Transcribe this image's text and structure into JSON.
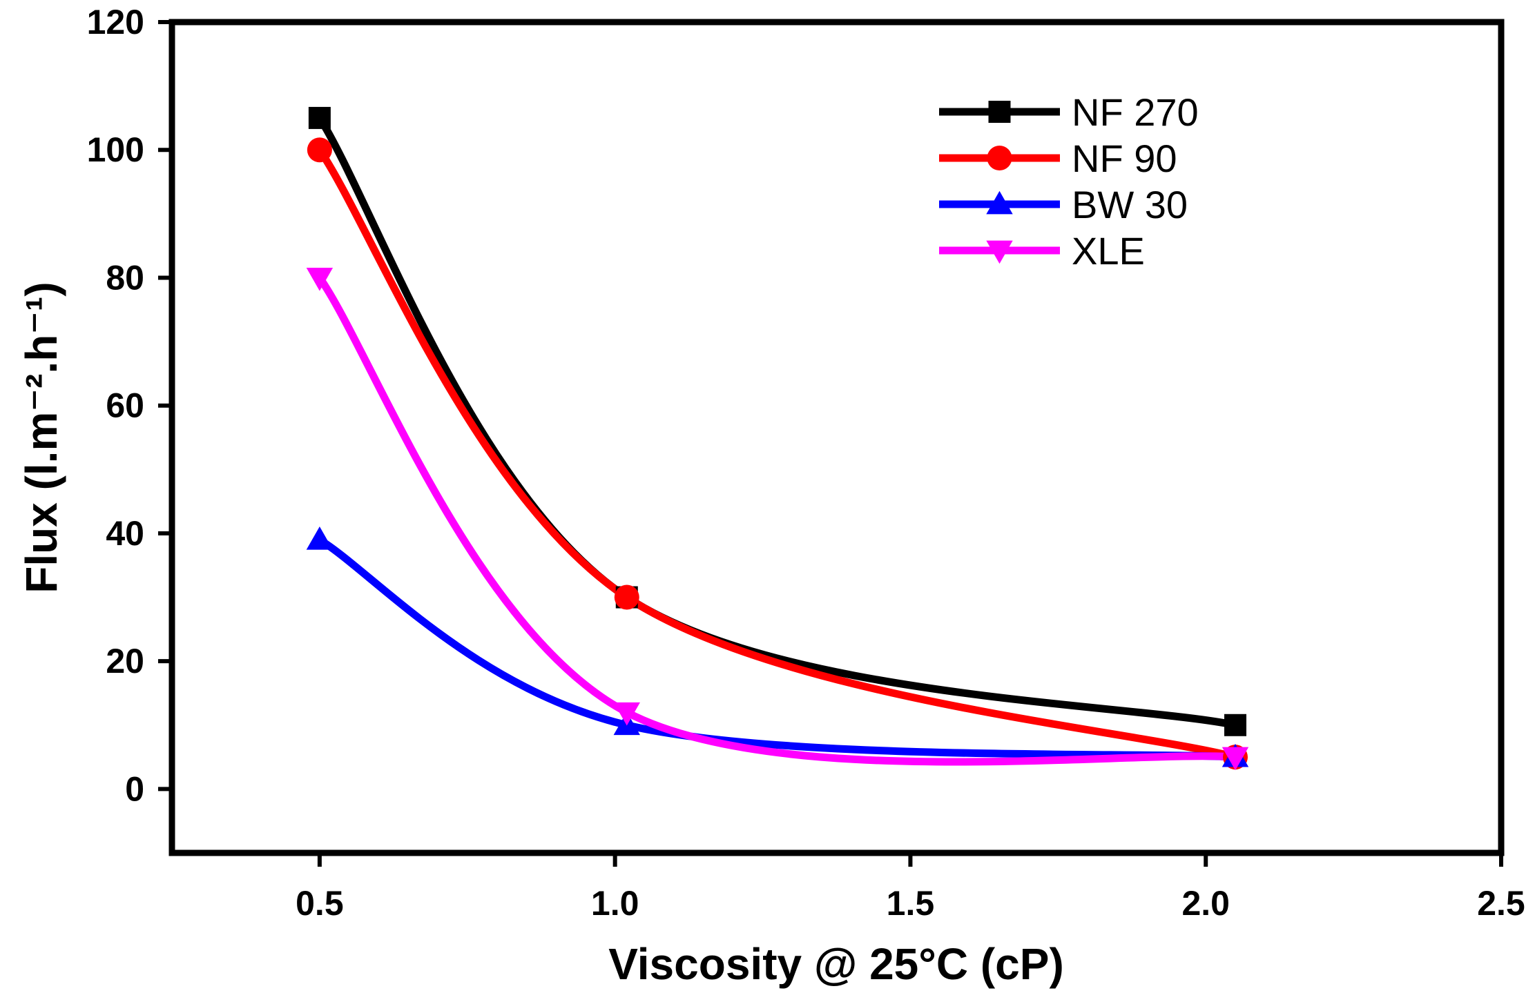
{
  "chart_data": {
    "type": "line",
    "xlabel": "Viscosity @ 25°C (cP)",
    "ylabel": "Flux (l.m⁻².h⁻¹)",
    "xlim": [
      0.25,
      2.5
    ],
    "ylim": [
      -10,
      120
    ],
    "x_ticks": [
      0.5,
      1.0,
      1.5,
      2.0,
      2.5
    ],
    "x_tick_labels": [
      "0.5",
      "1.0",
      "1.5",
      "2.0",
      "2.5"
    ],
    "y_ticks": [
      0,
      20,
      40,
      60,
      80,
      100,
      120
    ],
    "y_tick_labels": [
      "0",
      "20",
      "40",
      "60",
      "80",
      "100",
      "120"
    ],
    "legend_position": "top-right",
    "series": [
      {
        "name": "NF 270",
        "color": "#000000",
        "marker": "square",
        "x": [
          0.5,
          1.02,
          2.05
        ],
        "y": [
          105,
          30,
          10
        ]
      },
      {
        "name": "NF 90",
        "color": "#ff0000",
        "marker": "circle",
        "x": [
          0.5,
          1.02,
          2.05
        ],
        "y": [
          100,
          30,
          5
        ]
      },
      {
        "name": "BW 30",
        "color": "#0000ff",
        "marker": "triangle-up",
        "x": [
          0.5,
          1.02,
          2.05
        ],
        "y": [
          39,
          10,
          5
        ]
      },
      {
        "name": "XLE",
        "color": "#ff00ff",
        "marker": "triangle-down",
        "x": [
          0.5,
          1.02,
          2.05
        ],
        "y": [
          80,
          12,
          5
        ]
      }
    ]
  }
}
